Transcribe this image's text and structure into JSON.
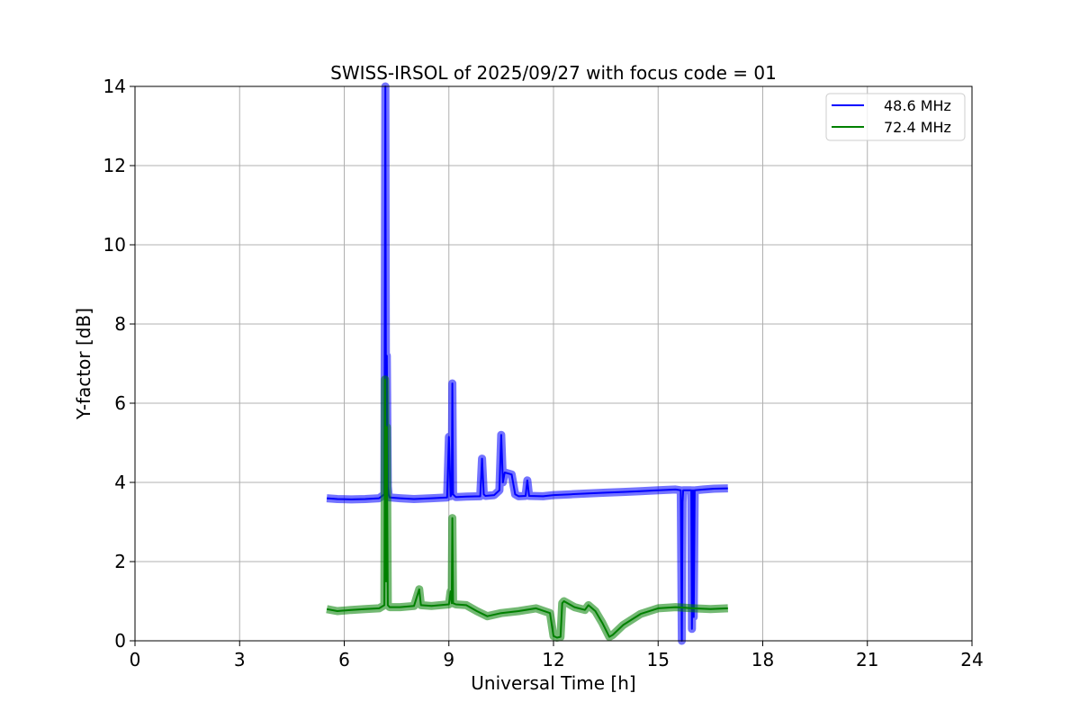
{
  "chart_data": {
    "type": "line",
    "title": "SWISS-IRSOL of 2025/09/27 with focus code = 01",
    "xlabel": "Universal Time [h]",
    "ylabel": "Y-factor [dB]",
    "xlim": [
      0,
      24
    ],
    "ylim": [
      0,
      14
    ],
    "xticks": [
      0,
      3,
      6,
      9,
      12,
      15,
      18,
      21,
      24
    ],
    "yticks": [
      0,
      2,
      4,
      6,
      8,
      10,
      12,
      14
    ],
    "grid": true,
    "legend_position": "top-right",
    "series": [
      {
        "name": "48.6 MHz",
        "color": "#0000ff",
        "x": [
          5.5,
          5.8,
          6.2,
          6.6,
          7.0,
          7.15,
          7.18,
          7.2,
          7.22,
          7.25,
          7.27,
          7.3,
          7.6,
          8.0,
          8.5,
          8.95,
          9.0,
          9.05,
          9.08,
          9.1,
          9.12,
          9.2,
          9.5,
          9.9,
          9.95,
          10.0,
          10.05,
          10.3,
          10.45,
          10.5,
          10.55,
          10.6,
          10.8,
          10.9,
          11.0,
          11.2,
          11.25,
          11.3,
          11.7,
          12.0,
          12.5,
          13.0,
          13.5,
          14.0,
          14.5,
          15.0,
          15.5,
          15.65,
          15.68,
          15.7,
          15.72,
          15.8,
          15.95,
          15.97,
          16.0,
          16.02,
          16.05,
          16.3,
          16.6,
          17.0
        ],
        "y": [
          3.6,
          3.58,
          3.57,
          3.58,
          3.6,
          3.7,
          14.0,
          4.0,
          7.2,
          3.9,
          3.7,
          3.62,
          3.6,
          3.58,
          3.6,
          3.62,
          5.15,
          3.65,
          3.7,
          6.5,
          3.7,
          3.63,
          3.64,
          3.65,
          4.6,
          3.7,
          3.66,
          3.68,
          3.8,
          5.2,
          4.0,
          4.25,
          4.2,
          3.7,
          3.65,
          3.66,
          4.05,
          3.66,
          3.65,
          3.68,
          3.7,
          3.72,
          3.74,
          3.76,
          3.78,
          3.8,
          3.82,
          3.8,
          0.0,
          3.5,
          3.8,
          3.8,
          3.8,
          0.3,
          3.8,
          0.6,
          3.8,
          3.82,
          3.84,
          3.85
        ]
      },
      {
        "name": "72.4 MHz",
        "color": "#008000",
        "x": [
          5.5,
          5.8,
          6.2,
          6.6,
          7.0,
          7.15,
          7.17,
          7.2,
          7.22,
          7.25,
          7.3,
          7.6,
          8.0,
          8.15,
          8.2,
          8.5,
          9.0,
          9.05,
          9.08,
          9.1,
          9.12,
          9.2,
          9.5,
          9.8,
          10.1,
          10.5,
          11.0,
          11.5,
          11.9,
          12.0,
          12.1,
          12.2,
          12.25,
          12.3,
          12.6,
          12.9,
          13.0,
          13.2,
          13.4,
          13.6,
          13.7,
          14.0,
          14.5,
          15.0,
          15.5,
          16.0,
          16.5,
          17.0
        ],
        "y": [
          0.8,
          0.75,
          0.78,
          0.8,
          0.82,
          0.9,
          6.6,
          1.5,
          5.4,
          0.9,
          0.85,
          0.85,
          0.88,
          1.3,
          0.9,
          0.88,
          0.92,
          1.25,
          0.95,
          3.1,
          0.95,
          0.92,
          0.9,
          0.75,
          0.62,
          0.7,
          0.75,
          0.82,
          0.7,
          0.12,
          0.08,
          0.1,
          0.95,
          1.0,
          0.85,
          0.78,
          0.9,
          0.75,
          0.45,
          0.1,
          0.15,
          0.4,
          0.68,
          0.82,
          0.85,
          0.82,
          0.8,
          0.82
        ]
      }
    ]
  }
}
